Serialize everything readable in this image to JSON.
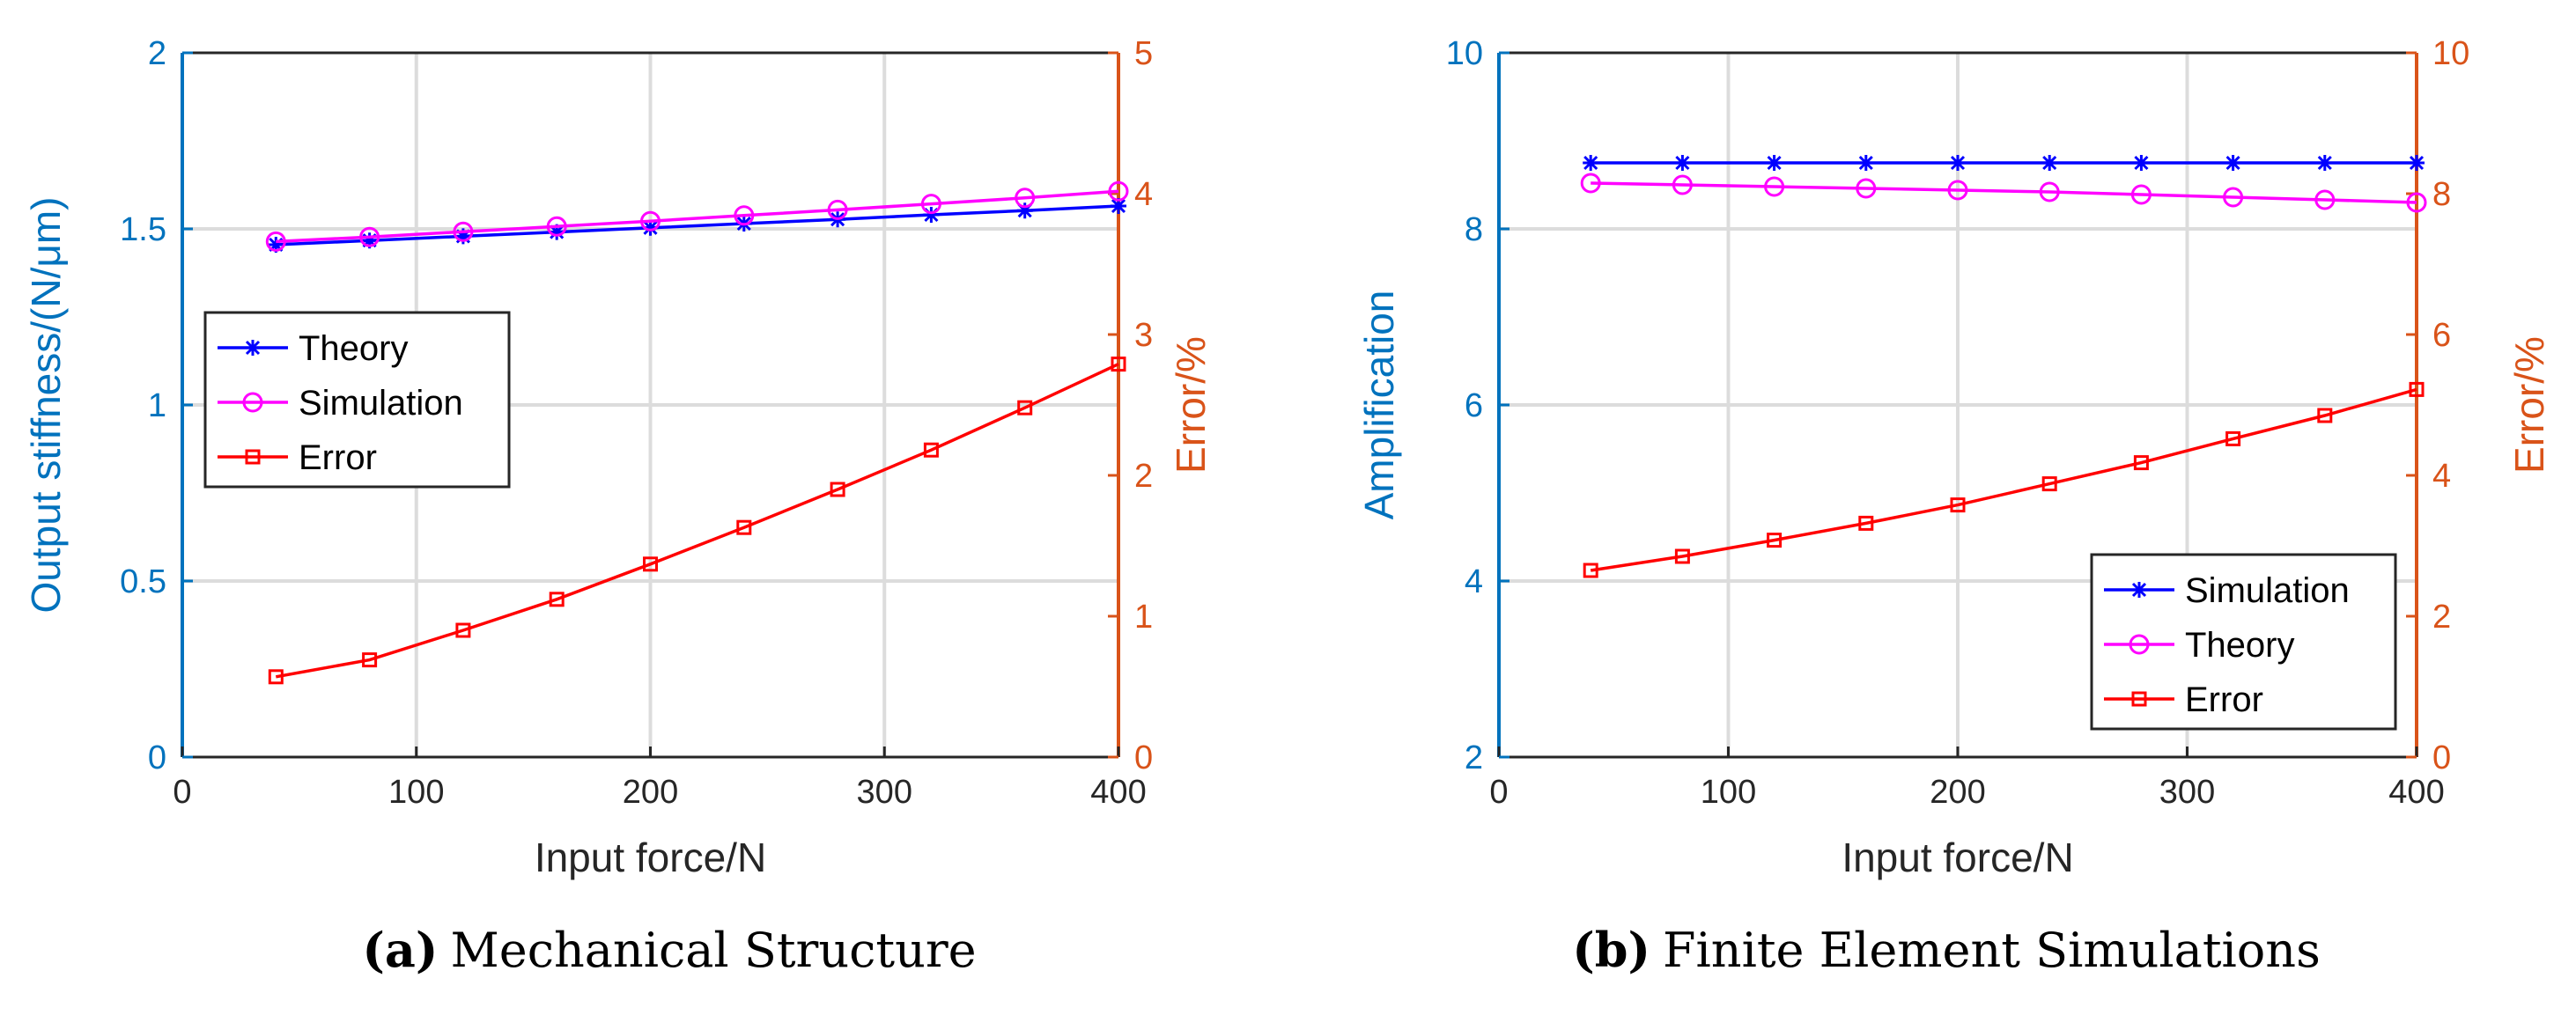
{
  "colors": {
    "left_axis": "#0072BD",
    "right_axis": "#D95319",
    "theory": "#0000FF",
    "simulation": "#FF00FF",
    "error": "#FF0000",
    "grid": "#DCDCDC",
    "frame": "#000000"
  },
  "chart_data": [
    {
      "type": "line",
      "panel": "(a)",
      "caption_label": "(a)",
      "caption_text": "Mechanical Structure",
      "xlabel": "Input force/N",
      "ylabel_left": "Output stiffness/(N/μm)",
      "ylabel_right": "Error/%",
      "xlim": [
        0,
        400
      ],
      "ylim_left": [
        0,
        2
      ],
      "ylim_right": [
        0,
        5
      ],
      "xticks": [
        "0",
        "100",
        "200",
        "300",
        "400"
      ],
      "yticks_left": [
        "0",
        "0.5",
        "1",
        "1.5",
        "2"
      ],
      "yticks_right": [
        "0",
        "1",
        "2",
        "3",
        "4",
        "5"
      ],
      "x": [
        40,
        80,
        120,
        160,
        200,
        240,
        280,
        320,
        360,
        400
      ],
      "series": [
        {
          "name": "Theory",
          "axis": "left",
          "marker": "star",
          "color_key": "theory",
          "values": [
            1.455,
            1.467,
            1.479,
            1.491,
            1.503,
            1.515,
            1.527,
            1.54,
            1.552,
            1.565
          ]
        },
        {
          "name": "Simulation",
          "axis": "left",
          "marker": "circle",
          "color_key": "simulation",
          "values": [
            1.464,
            1.477,
            1.492,
            1.507,
            1.522,
            1.538,
            1.554,
            1.571,
            1.588,
            1.607
          ]
        },
        {
          "name": "Error",
          "axis": "right",
          "marker": "square",
          "color_key": "error",
          "values": [
            0.57,
            0.69,
            0.9,
            1.12,
            1.37,
            1.63,
            1.9,
            2.18,
            2.48,
            2.79
          ]
        }
      ],
      "legend_position": "left-middle"
    },
    {
      "type": "line",
      "panel": "(b)",
      "caption_label": "(b)",
      "caption_text": "Finite Element Simulations",
      "xlabel": "Input force/N",
      "ylabel_left": "Amplification",
      "ylabel_right": "Error/%",
      "xlim": [
        0,
        400
      ],
      "ylim_left": [
        2,
        10
      ],
      "ylim_right": [
        0,
        10
      ],
      "xticks": [
        "0",
        "100",
        "200",
        "300",
        "400"
      ],
      "yticks_left": [
        "2",
        "4",
        "6",
        "8",
        "10"
      ],
      "yticks_right": [
        "0",
        "2",
        "4",
        "6",
        "8",
        "10"
      ],
      "x": [
        40,
        80,
        120,
        160,
        200,
        240,
        280,
        320,
        360,
        400
      ],
      "series": [
        {
          "name": "Simulation",
          "axis": "left",
          "marker": "star",
          "color_key": "theory",
          "values": [
            8.75,
            8.75,
            8.75,
            8.75,
            8.75,
            8.75,
            8.75,
            8.75,
            8.75,
            8.75
          ]
        },
        {
          "name": "Theory",
          "axis": "left",
          "marker": "circle",
          "color_key": "simulation",
          "values": [
            8.52,
            8.5,
            8.48,
            8.46,
            8.44,
            8.42,
            8.39,
            8.36,
            8.33,
            8.3
          ]
        },
        {
          "name": "Error",
          "axis": "right",
          "marker": "square",
          "color_key": "error",
          "values": [
            2.65,
            2.85,
            3.08,
            3.32,
            3.58,
            3.88,
            4.18,
            4.52,
            4.85,
            5.22
          ]
        }
      ],
      "legend_position": "bottom-right"
    }
  ]
}
